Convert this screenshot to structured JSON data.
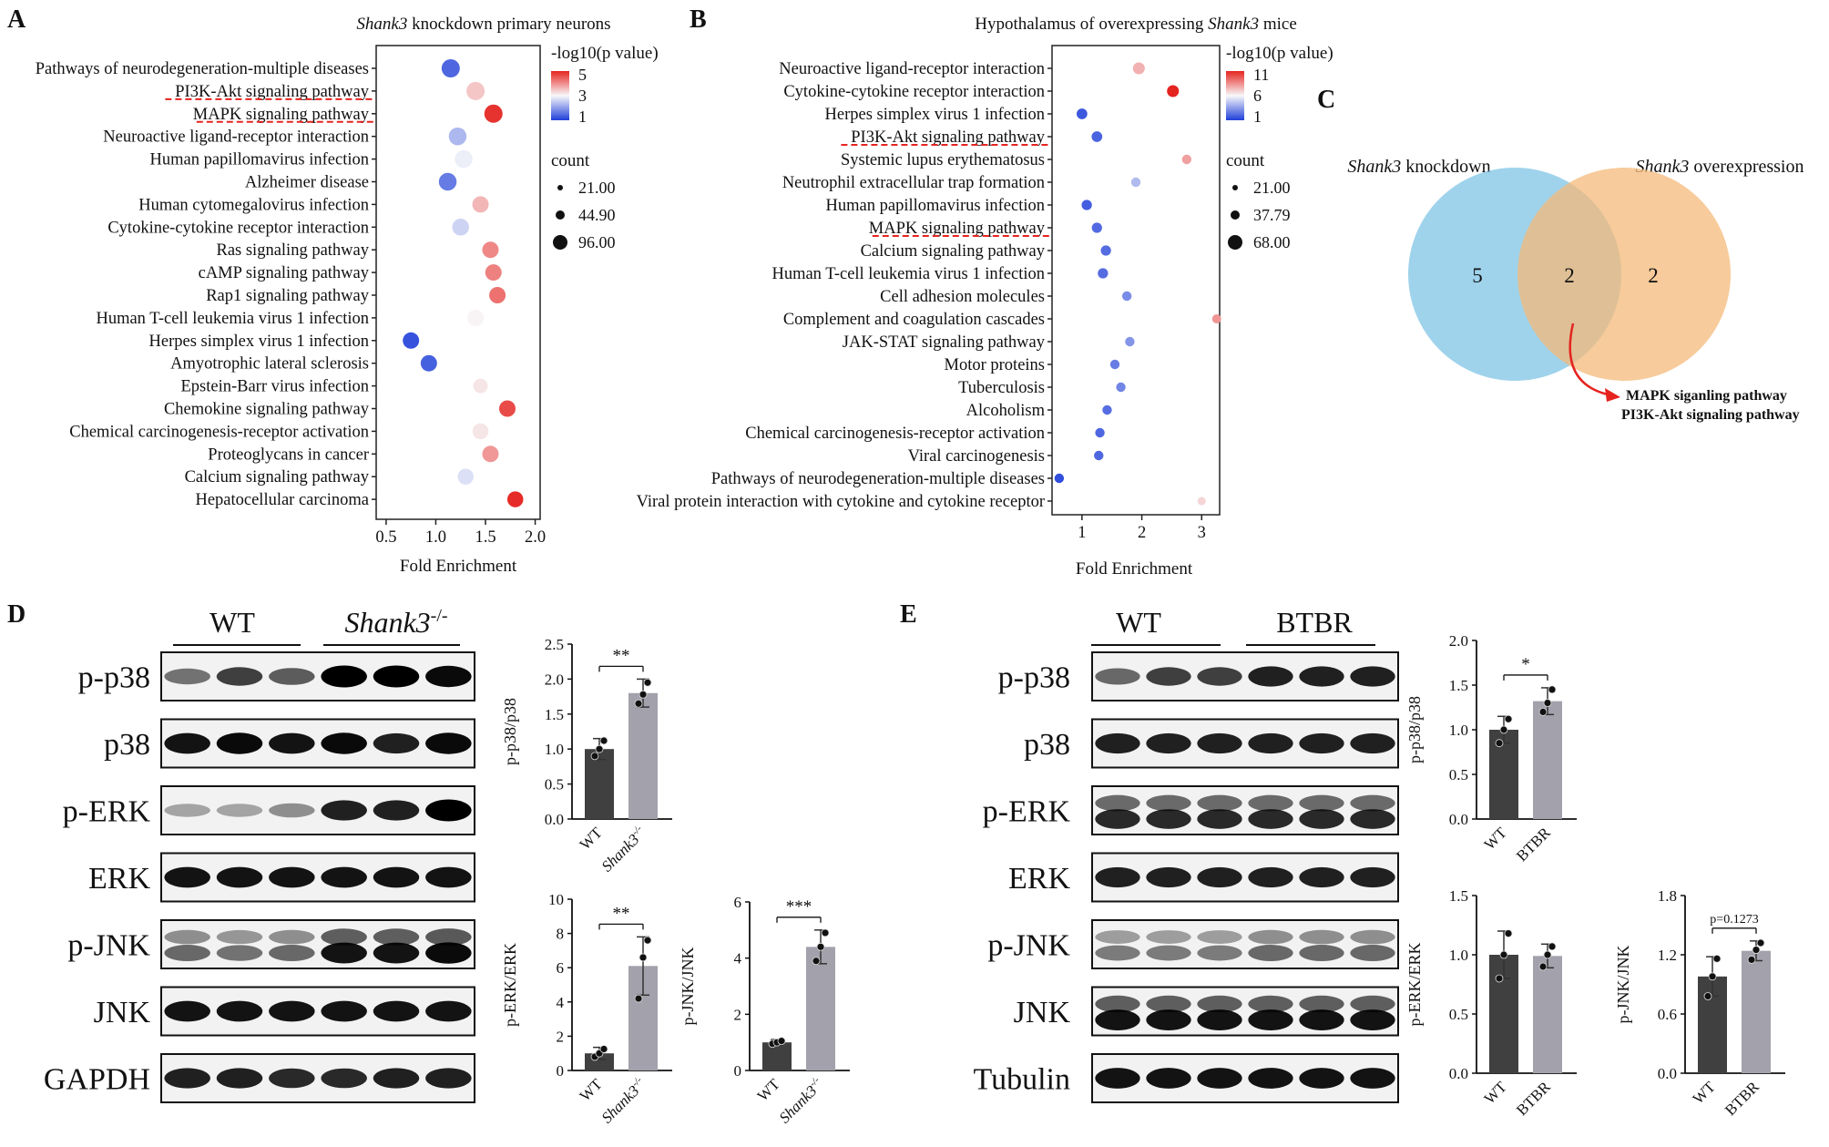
{
  "colors": {
    "red": "#e52420",
    "blue": "#1f3fd9",
    "venn_left": "#7fc4e6",
    "venn_right": "#f4b97a",
    "bar_wt": "#404040",
    "bar_mut": "#a3a1ab",
    "arrow": "#e52420"
  },
  "panels": {
    "A": {
      "letter": "A",
      "title_italic": "Shank3",
      "title_rest": " knockdown primary neurons"
    },
    "B": {
      "letter": "B",
      "title_rest": "Hypothalamus of overexpressing ",
      "title_italic": "Shank3",
      "title_tail": " mice"
    },
    "C": {
      "letter": "C"
    },
    "D": {
      "letter": "D"
    },
    "E": {
      "letter": "E"
    }
  },
  "chart_data": [
    {
      "id": "A",
      "type": "scatter",
      "xlabel": "Fold Enrichment",
      "xlim": [
        0.4,
        2.05
      ],
      "xticks": [
        0.5,
        1.0,
        1.5,
        2.0
      ],
      "xtick_labels": [
        "0.5",
        "1.0",
        "1.5",
        "2.0"
      ],
      "legend_color_title": "-log10(p value)",
      "legend_color_ticks": [
        "5",
        "3",
        "1"
      ],
      "color_range": [
        0,
        5.5
      ],
      "legend_size_title": "count",
      "legend_size_ticks": [
        "21.00",
        "44.90",
        "96.00"
      ],
      "underlined": [
        "PI3K-Akt signaling pathway",
        "MAPK signaling pathway"
      ],
      "points": [
        {
          "term": "Pathways of neurodegeneration-multiple diseases",
          "x": 1.15,
          "p": 0.6,
          "size": 1.0
        },
        {
          "term": "PI3K-Akt signaling pathway",
          "x": 1.4,
          "p": 3.4,
          "size": 1.0
        },
        {
          "term": "MAPK signaling pathway",
          "x": 1.58,
          "p": 5.3,
          "size": 1.0
        },
        {
          "term": "Neuroactive ligand-receptor interaction",
          "x": 1.22,
          "p": 1.8,
          "size": 0.95
        },
        {
          "term": "Human papillomavirus infection",
          "x": 1.28,
          "p": 2.6,
          "size": 0.95
        },
        {
          "term": "Alzheimer disease",
          "x": 1.12,
          "p": 0.9,
          "size": 0.95
        },
        {
          "term": "Human cytomegalovirus infection",
          "x": 1.45,
          "p": 3.6,
          "size": 0.8
        },
        {
          "term": "Cytokine-cytokine receptor interaction",
          "x": 1.25,
          "p": 2.2,
          "size": 0.85
        },
        {
          "term": "Ras signaling pathway",
          "x": 1.55,
          "p": 4.2,
          "size": 0.8
        },
        {
          "term": "cAMP signaling pathway",
          "x": 1.58,
          "p": 4.3,
          "size": 0.8
        },
        {
          "term": "Rap1 signaling pathway",
          "x": 1.62,
          "p": 4.5,
          "size": 0.8
        },
        {
          "term": "Human T-cell leukemia virus 1 infection",
          "x": 1.4,
          "p": 2.8,
          "size": 0.8
        },
        {
          "term": "Herpes simplex virus 1 infection",
          "x": 0.75,
          "p": 0.3,
          "size": 0.8
        },
        {
          "term": "Amyotrophic lateral sclerosis",
          "x": 0.93,
          "p": 0.5,
          "size": 0.8
        },
        {
          "term": "Epstein-Barr virus infection",
          "x": 1.45,
          "p": 3.0,
          "size": 0.6
        },
        {
          "term": "Chemokine signaling pathway",
          "x": 1.72,
          "p": 5.0,
          "size": 0.8
        },
        {
          "term": "Chemical carcinogenesis-receptor activation",
          "x": 1.45,
          "p": 3.0,
          "size": 0.75
        },
        {
          "term": "Proteoglycans in cancer",
          "x": 1.55,
          "p": 4.0,
          "size": 0.8
        },
        {
          "term": "Calcium signaling pathway",
          "x": 1.3,
          "p": 2.4,
          "size": 0.75
        },
        {
          "term": "Hepatocellular carcinoma",
          "x": 1.8,
          "p": 5.4,
          "size": 0.75
        }
      ]
    },
    {
      "id": "B",
      "type": "scatter",
      "xlabel": "Fold Enrichment",
      "xlim": [
        0.5,
        3.3
      ],
      "xticks": [
        1,
        2,
        3
      ],
      "xtick_labels": [
        "1",
        "2",
        "3"
      ],
      "legend_color_title": "-log10(p value)",
      "legend_color_ticks": [
        "11",
        "6",
        "1"
      ],
      "color_range": [
        0,
        12
      ],
      "legend_size_title": "count",
      "legend_size_ticks": [
        "21.00",
        "37.79",
        "68.00"
      ],
      "underlined": [
        "PI3K-Akt signaling pathway",
        "MAPK signaling pathway"
      ],
      "points": [
        {
          "term": "Neuroactive ligand-receptor interaction",
          "x": 1.95,
          "p": 8.0,
          "size": 0.9
        },
        {
          "term": "Cytokine-cytokine receptor interaction",
          "x": 2.52,
          "p": 12.0,
          "size": 0.9
        },
        {
          "term": "Herpes simplex virus 1 infection",
          "x": 1.0,
          "p": 0.8,
          "size": 0.75
        },
        {
          "term": "PI3K-Akt signaling pathway",
          "x": 1.25,
          "p": 1.2,
          "size": 0.75
        },
        {
          "term": "Systemic lupus erythematosus",
          "x": 2.75,
          "p": 8.5,
          "size": 0.6
        },
        {
          "term": "Neutrophil extracellular trap formation",
          "x": 1.9,
          "p": 4.0,
          "size": 0.6
        },
        {
          "term": "Human papillomavirus infection",
          "x": 1.08,
          "p": 1.0,
          "size": 0.7
        },
        {
          "term": "MAPK signaling pathway",
          "x": 1.25,
          "p": 1.4,
          "size": 0.7
        },
        {
          "term": "Calcium signaling pathway",
          "x": 1.4,
          "p": 1.5,
          "size": 0.7
        },
        {
          "term": "Human T-cell leukemia virus 1 infection",
          "x": 1.35,
          "p": 1.5,
          "size": 0.7
        },
        {
          "term": "Cell adhesion molecules",
          "x": 1.75,
          "p": 2.5,
          "size": 0.6
        },
        {
          "term": "Complement and coagulation cascades",
          "x": 3.25,
          "p": 8.8,
          "size": 0.55
        },
        {
          "term": "JAK-STAT signaling pathway",
          "x": 1.8,
          "p": 2.8,
          "size": 0.6
        },
        {
          "term": "Motor proteins",
          "x": 1.55,
          "p": 2.0,
          "size": 0.6
        },
        {
          "term": "Tuberculosis",
          "x": 1.65,
          "p": 2.3,
          "size": 0.6
        },
        {
          "term": "Alcoholism",
          "x": 1.42,
          "p": 1.5,
          "size": 0.6
        },
        {
          "term": "Chemical carcinogenesis-receptor activation",
          "x": 1.3,
          "p": 1.3,
          "size": 0.6
        },
        {
          "term": "Viral carcinogenesis",
          "x": 1.28,
          "p": 1.3,
          "size": 0.6
        },
        {
          "term": "Pathways of neurodegeneration-multiple diseases",
          "x": 0.62,
          "p": 0.5,
          "size": 0.6
        },
        {
          "term": "Viral protein interaction with cytokine and cytokine receptor",
          "x": 3.0,
          "p": 7.0,
          "size": 0.45
        }
      ]
    },
    {
      "id": "D1",
      "type": "bar",
      "ylabel": "p-p38/p38",
      "ylim": [
        0,
        2.5
      ],
      "yticks": [
        "0.0",
        "0.5",
        "1.0",
        "1.5",
        "2.0",
        "2.5"
      ],
      "categories": [
        "WT",
        "Shank3-/-"
      ],
      "values": [
        1.0,
        1.8
      ],
      "errors": [
        0.15,
        0.2
      ],
      "dots": [
        [
          0.9,
          1.0,
          1.12
        ],
        [
          1.65,
          1.78,
          1.95
        ]
      ],
      "sig": "**"
    },
    {
      "id": "D2",
      "type": "bar",
      "ylabel": "p-ERK/ERK",
      "ylim": [
        0,
        10
      ],
      "yticks": [
        "0",
        "2",
        "4",
        "6",
        "8",
        "10"
      ],
      "categories": [
        "WT",
        "Shank3-/-"
      ],
      "values": [
        1.0,
        6.1
      ],
      "errors": [
        0.35,
        1.7
      ],
      "dots": [
        [
          0.8,
          1.0,
          1.25
        ],
        [
          4.2,
          6.6,
          7.6
        ]
      ],
      "sig": "**"
    },
    {
      "id": "D3",
      "type": "bar",
      "ylabel": "p-JNK/JNK",
      "ylim": [
        0,
        6
      ],
      "yticks": [
        "0",
        "2",
        "4",
        "6"
      ],
      "categories": [
        "WT",
        "Shank3-/-"
      ],
      "values": [
        1.0,
        4.4
      ],
      "errors": [
        0.1,
        0.6
      ],
      "dots": [
        [
          0.95,
          1.0,
          1.05
        ],
        [
          3.9,
          4.4,
          4.9
        ]
      ],
      "sig": "***"
    },
    {
      "id": "E1",
      "type": "bar",
      "ylabel": "p-p38/p38",
      "ylim": [
        0,
        2.0
      ],
      "yticks": [
        "0.0",
        "0.5",
        "1.0",
        "1.5",
        "2.0"
      ],
      "categories": [
        "WT",
        "BTBR"
      ],
      "values": [
        1.0,
        1.32
      ],
      "errors": [
        0.15,
        0.15
      ],
      "dots": [
        [
          0.85,
          1.0,
          1.12
        ],
        [
          1.2,
          1.3,
          1.45
        ]
      ],
      "sig": "*"
    },
    {
      "id": "E2",
      "type": "bar",
      "ylabel": "p-ERK/ERK",
      "ylim": [
        0,
        1.5
      ],
      "yticks": [
        "0.0",
        "0.5",
        "1.0",
        "1.5"
      ],
      "categories": [
        "WT",
        "BTBR"
      ],
      "values": [
        1.0,
        0.99
      ],
      "errors": [
        0.2,
        0.1
      ],
      "dots": [
        [
          0.8,
          1.0,
          1.18
        ],
        [
          0.9,
          1.0,
          1.07
        ]
      ],
      "sig": ""
    },
    {
      "id": "E3",
      "type": "bar",
      "ylabel": "p-JNK/JNK",
      "ylim": [
        0,
        1.8
      ],
      "yticks": [
        "0.0",
        "0.6",
        "1.2",
        "1.8"
      ],
      "categories": [
        "WT",
        "BTBR"
      ],
      "values": [
        0.98,
        1.24
      ],
      "errors": [
        0.2,
        0.1
      ],
      "dots": [
        [
          0.78,
          0.98,
          1.16
        ],
        [
          1.15,
          1.25,
          1.32
        ]
      ],
      "sig": "p=0.1273"
    }
  ],
  "venn": {
    "left_label_italic": "Shank3",
    "left_label_rest": " knockdown",
    "right_label_italic": "Shank3",
    "right_label_rest": " overexpression",
    "left_only": "5",
    "both": "2",
    "right_only": "2",
    "shared_1": "MAPK siganling pathway",
    "shared_2": "PI3K-Akt signaling pathway"
  },
  "blots": {
    "D": {
      "group1": "WT",
      "group2_main": "Shank3",
      "group2_sup": "-/-",
      "rows": [
        "p-p38",
        "p38",
        "p-ERK",
        "ERK",
        "p-JNK",
        "JNK",
        "GAPDH"
      ]
    },
    "E": {
      "group1": "WT",
      "group2": "BTBR",
      "rows": [
        "p-p38",
        "p38",
        "p-ERK",
        "ERK",
        "p-JNK",
        "JNK",
        "Tubulin"
      ]
    }
  }
}
